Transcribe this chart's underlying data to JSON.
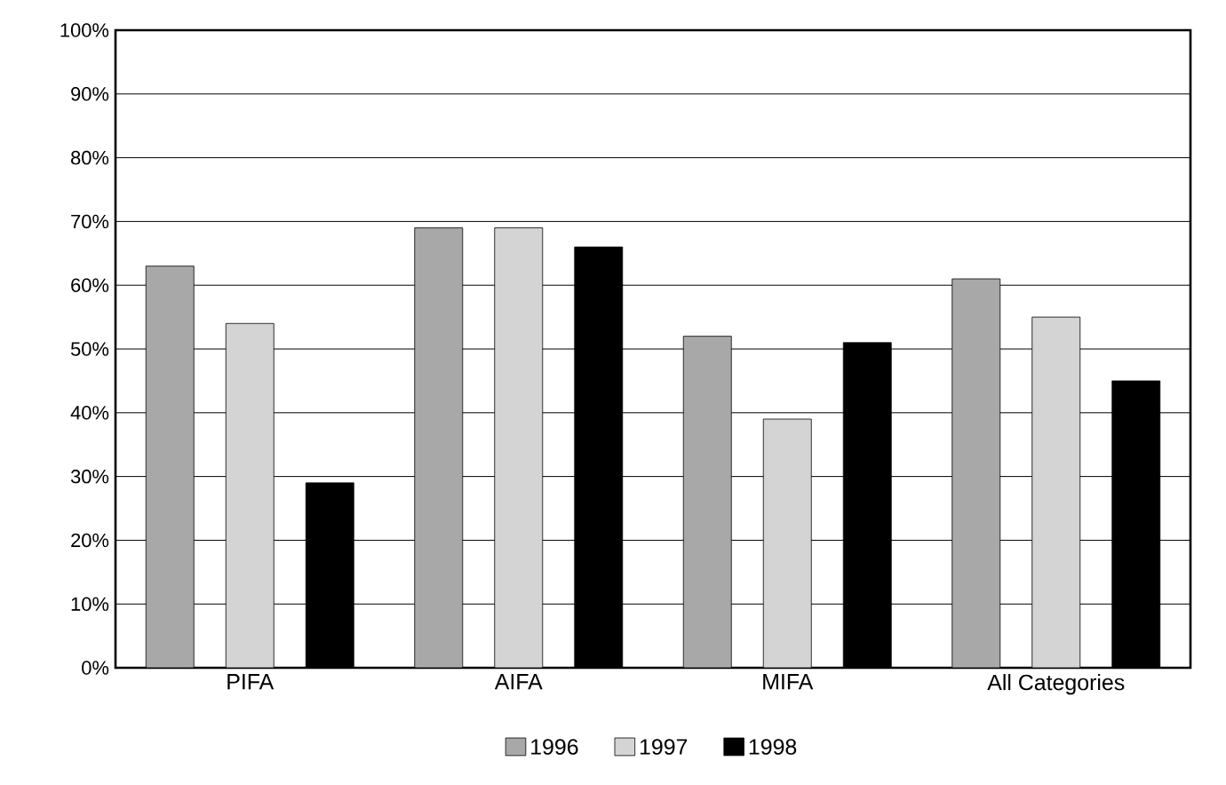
{
  "chart_data": {
    "type": "bar",
    "categories": [
      "PIFA",
      "AIFA",
      "MIFA",
      "All Categories"
    ],
    "series": [
      {
        "name": "1996",
        "color": "#a8a8a8",
        "values": [
          63,
          69,
          52,
          61
        ]
      },
      {
        "name": "1997",
        "color": "#d4d4d4",
        "values": [
          54,
          69,
          39,
          55
        ]
      },
      {
        "name": "1998",
        "color": "#000000",
        "values": [
          29,
          66,
          51,
          45
        ]
      }
    ],
    "ylim": [
      0,
      100
    ],
    "yticks": [
      {
        "value": 0,
        "label": "0%"
      },
      {
        "value": 10,
        "label": "10%"
      },
      {
        "value": 20,
        "label": "20%"
      },
      {
        "value": 30,
        "label": "30%"
      },
      {
        "value": 40,
        "label": "40%"
      },
      {
        "value": 50,
        "label": "50%"
      },
      {
        "value": 60,
        "label": "60%"
      },
      {
        "value": 70,
        "label": "70%"
      },
      {
        "value": 80,
        "label": "80%"
      },
      {
        "value": 90,
        "label": "90%"
      },
      {
        "value": 100,
        "label": "100%"
      }
    ],
    "grid": "y",
    "legend": "bottom"
  }
}
